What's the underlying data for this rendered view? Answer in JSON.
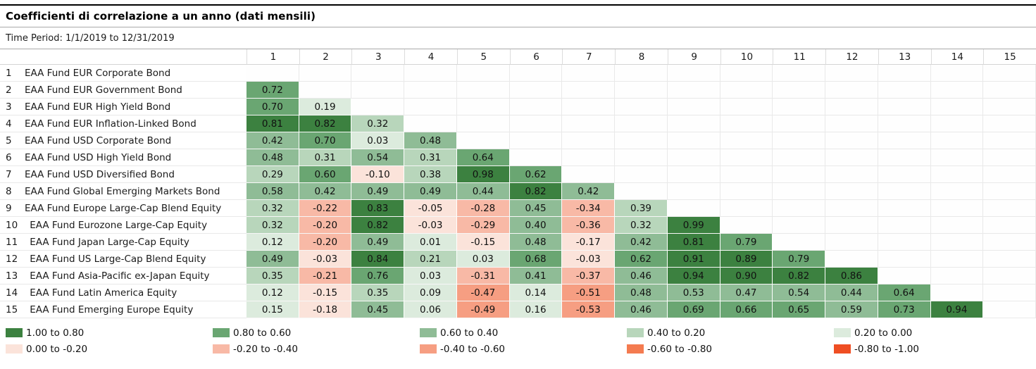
{
  "title": "Coefficienti di correlazione a un anno (dati mensili)",
  "time_period": "Time Period: 1/1/2019 to 12/31/2019",
  "chart_data": {
    "type": "heatmap",
    "title": "Coefficienti di correlazione a un anno (dati mensili)",
    "subtitle": "Time Period: 1/1/2019 to 12/31/2019",
    "column_headers": [
      "1",
      "2",
      "3",
      "4",
      "5",
      "6",
      "7",
      "8",
      "9",
      "10",
      "11",
      "12",
      "13",
      "14",
      "15"
    ],
    "rows": [
      {
        "num": "1",
        "label": "EAA Fund EUR Corporate Bond",
        "values": []
      },
      {
        "num": "2",
        "label": "EAA Fund EUR Government Bond",
        "values": [
          0.72
        ]
      },
      {
        "num": "3",
        "label": "EAA Fund EUR High Yield Bond",
        "values": [
          0.7,
          0.19
        ]
      },
      {
        "num": "4",
        "label": "EAA Fund EUR Inflation-Linked Bond",
        "values": [
          0.81,
          0.82,
          0.32
        ]
      },
      {
        "num": "5",
        "label": "EAA Fund USD Corporate Bond",
        "values": [
          0.42,
          0.7,
          0.03,
          0.48
        ]
      },
      {
        "num": "6",
        "label": "EAA Fund USD High Yield Bond",
        "values": [
          0.48,
          0.31,
          0.54,
          0.31,
          0.64
        ]
      },
      {
        "num": "7",
        "label": "EAA Fund USD Diversified Bond",
        "values": [
          0.29,
          0.6,
          -0.1,
          0.38,
          0.98,
          0.62
        ]
      },
      {
        "num": "8",
        "label": "EAA Fund Global Emerging Markets Bond",
        "values": [
          0.58,
          0.42,
          0.49,
          0.49,
          0.44,
          0.82,
          0.42
        ]
      },
      {
        "num": "9",
        "label": "EAA Fund Europe Large-Cap Blend Equity",
        "values": [
          0.32,
          -0.22,
          0.83,
          -0.05,
          -0.28,
          0.45,
          -0.34,
          0.39
        ]
      },
      {
        "num": "10",
        "label": "EAA Fund Eurozone Large-Cap Equity",
        "values": [
          0.32,
          -0.2,
          0.82,
          -0.03,
          -0.29,
          0.4,
          -0.36,
          0.32,
          0.99
        ]
      },
      {
        "num": "11",
        "label": "EAA Fund Japan Large-Cap Equity",
        "values": [
          0.12,
          -0.2,
          0.49,
          0.01,
          -0.15,
          0.48,
          -0.17,
          0.42,
          0.81,
          0.79
        ]
      },
      {
        "num": "12",
        "label": "EAA Fund US Large-Cap Blend Equity",
        "values": [
          0.49,
          -0.03,
          0.84,
          0.21,
          0.03,
          0.68,
          -0.03,
          0.62,
          0.91,
          0.89,
          0.79
        ]
      },
      {
        "num": "13",
        "label": "EAA Fund Asia-Pacific ex-Japan Equity",
        "values": [
          0.35,
          -0.21,
          0.76,
          0.03,
          -0.31,
          0.41,
          -0.37,
          0.46,
          0.94,
          0.9,
          0.82,
          0.86
        ]
      },
      {
        "num": "14",
        "label": "EAA Fund Latin America Equity",
        "values": [
          0.12,
          -0.15,
          0.35,
          0.09,
          -0.47,
          0.14,
          -0.51,
          0.48,
          0.53,
          0.47,
          0.54,
          0.44,
          0.64
        ]
      },
      {
        "num": "15",
        "label": "EAA Fund Emerging Europe Equity",
        "values": [
          0.15,
          -0.18,
          0.45,
          0.06,
          -0.49,
          0.16,
          -0.53,
          0.46,
          0.69,
          0.66,
          0.65,
          0.59,
          0.73,
          0.94
        ]
      }
    ],
    "legend": [
      {
        "label": "1.00 to 0.80",
        "color": "#3c8140"
      },
      {
        "label": "0.80 to 0.60",
        "color": "#6aa672"
      },
      {
        "label": "0.60 to 0.40",
        "color": "#8fbc96"
      },
      {
        "label": "0.40 to 0.20",
        "color": "#b8d6bb"
      },
      {
        "label": "0.20 to 0.00",
        "color": "#dcebdd"
      },
      {
        "label": "0.00 to -0.20",
        "color": "#fbe3da"
      },
      {
        "label": "-0.20 to -0.40",
        "color": "#f8b9a6"
      },
      {
        "label": "-0.40 to -0.60",
        "color": "#f69e82"
      },
      {
        "label": "-0.60 to -0.80",
        "color": "#f47b50"
      },
      {
        "label": "-0.80 to -1.00",
        "color": "#ef4e23"
      }
    ],
    "legend_position": "bottom",
    "value_range": [
      -1.0,
      1.0
    ],
    "grid": true
  }
}
